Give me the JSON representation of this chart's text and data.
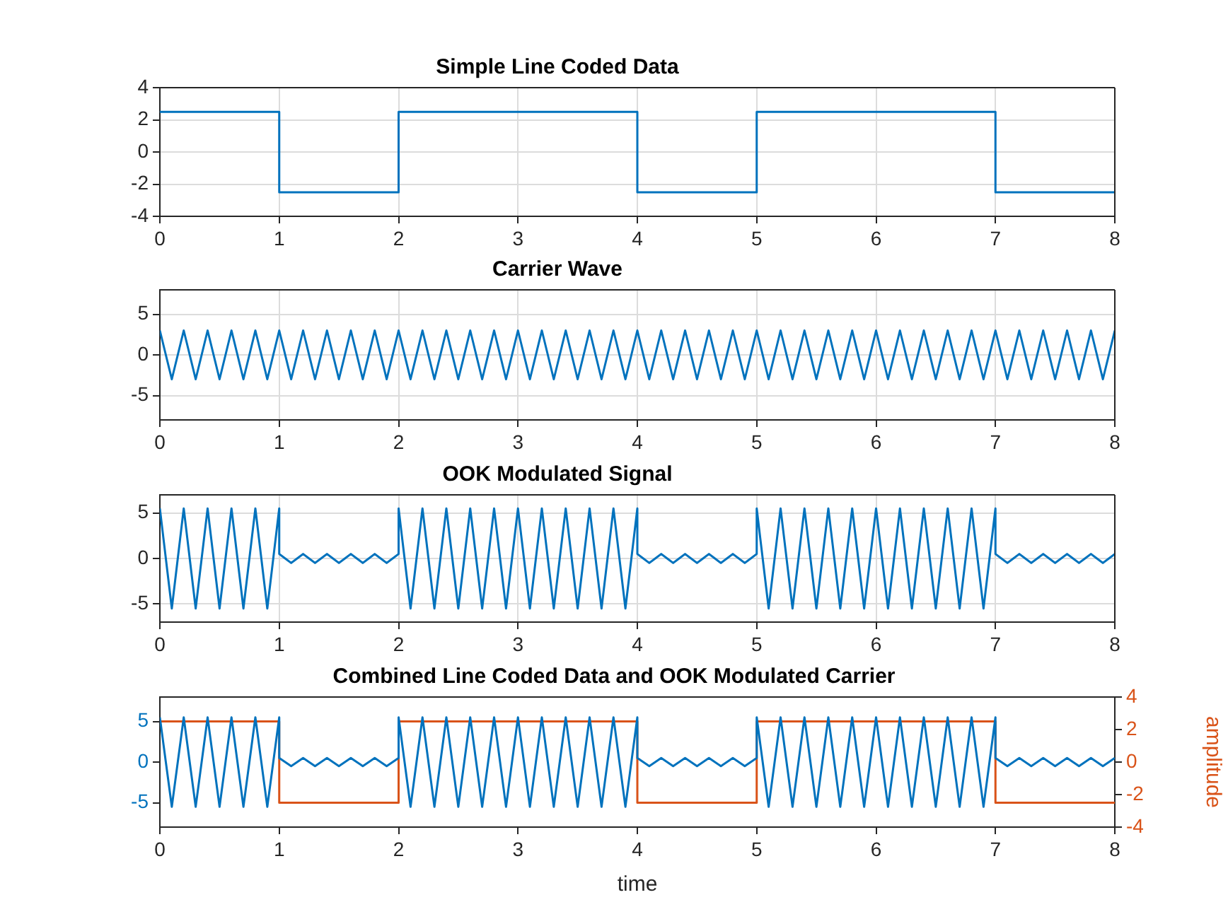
{
  "chart_data": [
    {
      "type": "step",
      "title": "Simple Line Coded Data",
      "x": [
        0,
        1,
        2,
        4,
        5,
        7,
        8
      ],
      "values": [
        2.5,
        -2.5,
        2.5,
        -2.5,
        2.5,
        -2.5,
        -2.5
      ],
      "color": "#0072bd",
      "xlim": [
        0,
        8
      ],
      "xticks": [
        0,
        1,
        2,
        3,
        4,
        5,
        6,
        7,
        8
      ],
      "ylim": [
        -4,
        4
      ],
      "yticks": [
        -4,
        -2,
        0,
        2,
        4
      ],
      "grid": true
    },
    {
      "type": "line",
      "title": "Carrier Wave",
      "x": [
        0,
        0.05,
        0.1,
        0.15,
        0.2,
        0.25,
        0.3,
        0.35,
        0.4,
        0.45,
        0.5,
        0.55,
        0.6,
        0.65,
        0.7,
        0.75,
        0.8,
        0.85,
        0.9,
        0.95,
        1,
        1.05,
        1.1,
        1.15,
        1.2,
        1.25,
        1.3,
        1.35,
        1.4,
        1.45,
        1.5,
        1.55,
        1.6,
        1.65,
        1.7,
        1.75,
        1.8,
        1.85,
        1.9,
        1.95,
        2,
        2.05,
        2.1,
        2.15,
        2.2,
        2.25,
        2.3,
        2.35,
        2.4,
        2.45,
        2.5,
        2.55,
        2.6,
        2.65,
        2.7,
        2.75,
        2.8,
        2.85,
        2.9,
        2.95,
        3,
        3.05,
        3.1,
        3.15,
        3.2,
        3.25,
        3.3,
        3.35,
        3.4,
        3.45,
        3.5,
        3.55,
        3.6,
        3.65,
        3.7,
        3.75,
        3.8,
        3.85,
        3.9,
        3.95,
        4,
        4.05,
        4.1,
        4.15,
        4.2,
        4.25,
        4.3,
        4.35,
        4.4,
        4.45,
        4.5,
        4.55,
        4.6,
        4.65,
        4.7,
        4.75,
        4.8,
        4.85,
        4.9,
        4.95,
        5,
        5.05,
        5.1,
        5.15,
        5.2,
        5.25,
        5.3,
        5.35,
        5.4,
        5.45,
        5.5,
        5.55,
        5.6,
        5.65,
        5.7,
        5.75,
        5.8,
        5.85,
        5.9,
        5.95,
        6,
        6.05,
        6.1,
        6.15,
        6.2,
        6.25,
        6.3,
        6.35,
        6.4,
        6.45,
        6.5,
        6.55,
        6.6,
        6.65,
        6.7,
        6.75,
        6.8,
        6.85,
        6.9,
        6.95,
        7,
        7.05,
        7.1,
        7.15,
        7.2,
        7.25,
        7.3,
        7.35,
        7.4,
        7.45,
        7.5,
        7.55,
        7.6,
        7.65,
        7.7,
        7.75,
        7.8,
        7.85,
        7.9,
        7.95,
        8
      ],
      "values": [
        3,
        0,
        -3,
        0,
        3,
        0,
        -3,
        0,
        3,
        0,
        -3,
        0,
        3,
        0,
        -3,
        0,
        3,
        0,
        -3,
        0,
        3,
        0,
        -3,
        0,
        3,
        0,
        -3,
        0,
        3,
        0,
        -3,
        0,
        3,
        0,
        -3,
        0,
        3,
        0,
        -3,
        0,
        3,
        0,
        -3,
        0,
        3,
        0,
        -3,
        0,
        3,
        0,
        -3,
        0,
        3,
        0,
        -3,
        0,
        3,
        0,
        -3,
        0,
        3,
        0,
        -3,
        0,
        3,
        0,
        -3,
        0,
        3,
        0,
        -3,
        0,
        3,
        0,
        -3,
        0,
        3,
        0,
        -3,
        0,
        3,
        0,
        -3,
        0,
        3,
        0,
        -3,
        0,
        3,
        0,
        -3,
        0,
        3,
        0,
        -3,
        0,
        3,
        0,
        -3,
        0,
        3,
        0,
        -3,
        0,
        3,
        0,
        -3,
        0,
        3,
        0,
        -3,
        0,
        3,
        0,
        -3,
        0,
        3,
        0,
        -3,
        0,
        3,
        0,
        -3,
        0,
        3,
        0,
        -3,
        0,
        3,
        0,
        -3,
        0,
        3,
        0,
        -3,
        0,
        3,
        0,
        -3,
        0,
        3,
        0,
        -3,
        0,
        3,
        0,
        -3,
        0,
        3,
        0,
        -3,
        0,
        3,
        0,
        -3,
        0,
        3,
        0,
        -3,
        0,
        3
      ],
      "color": "#0072bd",
      "xlim": [
        0,
        8
      ],
      "xticks": [
        0,
        1,
        2,
        3,
        4,
        5,
        6,
        7,
        8
      ],
      "ylim": [
        -8,
        8
      ],
      "yticks": [
        -5,
        0,
        5
      ],
      "grid": true
    },
    {
      "type": "line",
      "title": "OOK Modulated Signal",
      "x": [
        0,
        0.05,
        0.1,
        0.15,
        0.2,
        0.25,
        0.3,
        0.35,
        0.4,
        0.45,
        0.5,
        0.55,
        0.6,
        0.65,
        0.7,
        0.75,
        0.8,
        0.85,
        0.9,
        0.95,
        1,
        1,
        1.05,
        1.1,
        1.15,
        1.2,
        1.25,
        1.3,
        1.35,
        1.4,
        1.45,
        1.5,
        1.55,
        1.6,
        1.65,
        1.7,
        1.75,
        1.8,
        1.85,
        1.9,
        1.95,
        2,
        2,
        2.05,
        2.1,
        2.15,
        2.2,
        2.25,
        2.3,
        2.35,
        2.4,
        2.45,
        2.5,
        2.55,
        2.6,
        2.65,
        2.7,
        2.75,
        2.8,
        2.85,
        2.9,
        2.95,
        3,
        3.05,
        3.1,
        3.15,
        3.2,
        3.25,
        3.3,
        3.35,
        3.4,
        3.45,
        3.5,
        3.55,
        3.6,
        3.65,
        3.7,
        3.75,
        3.8,
        3.85,
        3.9,
        3.95,
        4,
        4,
        4.05,
        4.1,
        4.15,
        4.2,
        4.25,
        4.3,
        4.35,
        4.4,
        4.45,
        4.5,
        4.55,
        4.6,
        4.65,
        4.7,
        4.75,
        4.8,
        4.85,
        4.9,
        4.95,
        5,
        5,
        5.05,
        5.1,
        5.15,
        5.2,
        5.25,
        5.3,
        5.35,
        5.4,
        5.45,
        5.5,
        5.55,
        5.6,
        5.65,
        5.7,
        5.75,
        5.8,
        5.85,
        5.9,
        5.95,
        6,
        6.05,
        6.1,
        6.15,
        6.2,
        6.25,
        6.3,
        6.35,
        6.4,
        6.45,
        6.5,
        6.55,
        6.6,
        6.65,
        6.7,
        6.75,
        6.8,
        6.85,
        6.9,
        6.95,
        7,
        7,
        7.05,
        7.1,
        7.15,
        7.2,
        7.25,
        7.3,
        7.35,
        7.4,
        7.45,
        7.5,
        7.55,
        7.6,
        7.65,
        7.7,
        7.75,
        7.8,
        7.85,
        7.9,
        7.95,
        8
      ],
      "values": [
        5.5,
        0,
        -5.5,
        0,
        5.5,
        0,
        -5.5,
        0,
        5.5,
        0,
        -5.5,
        0,
        5.5,
        0,
        -5.5,
        0,
        5.5,
        0,
        -5.5,
        0,
        5.5,
        0.5,
        0,
        -0.5,
        0,
        0.5,
        0,
        -0.5,
        0,
        0.5,
        0,
        -0.5,
        0,
        0.5,
        0,
        -0.5,
        0,
        0.5,
        0,
        -0.5,
        0,
        0.5,
        5.5,
        0,
        -5.5,
        0,
        5.5,
        0,
        -5.5,
        0,
        5.5,
        0,
        -5.5,
        0,
        5.5,
        0,
        -5.5,
        0,
        5.5,
        0,
        -5.5,
        0,
        5.5,
        0,
        -5.5,
        0,
        5.5,
        0,
        -5.5,
        0,
        5.5,
        0,
        -5.5,
        0,
        5.5,
        0,
        -5.5,
        0,
        5.5,
        0,
        -5.5,
        0,
        5.5,
        0.5,
        0,
        -0.5,
        0,
        0.5,
        0,
        -0.5,
        0,
        0.5,
        0,
        -0.5,
        0,
        0.5,
        0,
        -0.5,
        0,
        0.5,
        0,
        -0.5,
        0,
        0.5,
        5.5,
        0,
        -5.5,
        0,
        5.5,
        0,
        -5.5,
        0,
        5.5,
        0,
        -5.5,
        0,
        5.5,
        0,
        -5.5,
        0,
        5.5,
        0,
        -5.5,
        0,
        5.5,
        0,
        -5.5,
        0,
        5.5,
        0,
        -5.5,
        0,
        5.5,
        0,
        -5.5,
        0,
        5.5,
        0,
        -5.5,
        0,
        5.5,
        0,
        -5.5,
        0,
        5.5,
        0.5,
        0,
        -0.5,
        0,
        0.5,
        0,
        -0.5,
        0,
        0.5,
        0,
        -0.5,
        0,
        0.5,
        0,
        -0.5,
        0,
        0.5,
        0,
        -0.5,
        0,
        0.5
      ],
      "color": "#0072bd",
      "xlim": [
        0,
        8
      ],
      "xticks": [
        0,
        1,
        2,
        3,
        4,
        5,
        6,
        7,
        8
      ],
      "ylim": [
        -7,
        7
      ],
      "yticks": [
        -5,
        0,
        5
      ],
      "grid": true
    },
    {
      "type": "line",
      "title": "Combined Line Coded Data and OOK Modulated Carrier",
      "xlabel": "time",
      "y2label": "amplitude",
      "series": [
        {
          "color": "#0072bd",
          "x": [
            0,
            0.05,
            0.1,
            0.15,
            0.2,
            0.25,
            0.3,
            0.35,
            0.4,
            0.45,
            0.5,
            0.55,
            0.6,
            0.65,
            0.7,
            0.75,
            0.8,
            0.85,
            0.9,
            0.95,
            1,
            1,
            1.05,
            1.1,
            1.15,
            1.2,
            1.25,
            1.3,
            1.35,
            1.4,
            1.45,
            1.5,
            1.55,
            1.6,
            1.65,
            1.7,
            1.75,
            1.8,
            1.85,
            1.9,
            1.95,
            2,
            2,
            2.05,
            2.1,
            2.15,
            2.2,
            2.25,
            2.3,
            2.35,
            2.4,
            2.45,
            2.5,
            2.55,
            2.6,
            2.65,
            2.7,
            2.75,
            2.8,
            2.85,
            2.9,
            2.95,
            3,
            3.05,
            3.1,
            3.15,
            3.2,
            3.25,
            3.3,
            3.35,
            3.4,
            3.45,
            3.5,
            3.55,
            3.6,
            3.65,
            3.7,
            3.75,
            3.8,
            3.85,
            3.9,
            3.95,
            4,
            4,
            4.05,
            4.1,
            4.15,
            4.2,
            4.25,
            4.3,
            4.35,
            4.4,
            4.45,
            4.5,
            4.55,
            4.6,
            4.65,
            4.7,
            4.75,
            4.8,
            4.85,
            4.9,
            4.95,
            5,
            5,
            5.05,
            5.1,
            5.15,
            5.2,
            5.25,
            5.3,
            5.35,
            5.4,
            5.45,
            5.5,
            5.55,
            5.6,
            5.65,
            5.7,
            5.75,
            5.8,
            5.85,
            5.9,
            5.95,
            6,
            6.05,
            6.1,
            6.15,
            6.2,
            6.25,
            6.3,
            6.35,
            6.4,
            6.45,
            6.5,
            6.55,
            6.6,
            6.65,
            6.7,
            6.75,
            6.8,
            6.85,
            6.9,
            6.95,
            7,
            7,
            7.05,
            7.1,
            7.15,
            7.2,
            7.25,
            7.3,
            7.35,
            7.4,
            7.45,
            7.5,
            7.55,
            7.6,
            7.65,
            7.7,
            7.75,
            7.8,
            7.85,
            7.9,
            7.95,
            8
          ],
          "values": [
            5.5,
            0,
            -5.5,
            0,
            5.5,
            0,
            -5.5,
            0,
            5.5,
            0,
            -5.5,
            0,
            5.5,
            0,
            -5.5,
            0,
            5.5,
            0,
            -5.5,
            0,
            5.5,
            0.5,
            0,
            -0.5,
            0,
            0.5,
            0,
            -0.5,
            0,
            0.5,
            0,
            -0.5,
            0,
            0.5,
            0,
            -0.5,
            0,
            0.5,
            0,
            -0.5,
            0,
            0.5,
            5.5,
            0,
            -5.5,
            0,
            5.5,
            0,
            -5.5,
            0,
            5.5,
            0,
            -5.5,
            0,
            5.5,
            0,
            -5.5,
            0,
            5.5,
            0,
            -5.5,
            0,
            5.5,
            0,
            -5.5,
            0,
            5.5,
            0,
            -5.5,
            0,
            5.5,
            0,
            -5.5,
            0,
            5.5,
            0,
            -5.5,
            0,
            5.5,
            0,
            -5.5,
            0,
            5.5,
            0.5,
            0,
            -0.5,
            0,
            0.5,
            0,
            -0.5,
            0,
            0.5,
            0,
            -0.5,
            0,
            0.5,
            0,
            -0.5,
            0,
            0.5,
            0,
            -0.5,
            0,
            0.5,
            5.5,
            0,
            -5.5,
            0,
            5.5,
            0,
            -5.5,
            0,
            5.5,
            0,
            -5.5,
            0,
            5.5,
            0,
            -5.5,
            0,
            5.5,
            0,
            -5.5,
            0,
            5.5,
            0,
            -5.5,
            0,
            5.5,
            0,
            -5.5,
            0,
            5.5,
            0,
            -5.5,
            0,
            5.5,
            0,
            -5.5,
            0,
            5.5,
            0,
            -5.5,
            0,
            5.5,
            0.5,
            0,
            -0.5,
            0,
            0.5,
            0,
            -0.5,
            0,
            0.5,
            0,
            -0.5,
            0,
            0.5,
            0,
            -0.5,
            0,
            0.5,
            0,
            -0.5,
            0,
            0.5
          ]
        },
        {
          "type": "step",
          "axis": "y2",
          "color": "#d95319",
          "x": [
            0,
            1,
            2,
            4,
            5,
            7,
            8
          ],
          "values": [
            2.5,
            -2.5,
            2.5,
            -2.5,
            2.5,
            -2.5,
            -2.5
          ]
        }
      ],
      "xlim": [
        0,
        8
      ],
      "xticks": [
        0,
        1,
        2,
        3,
        4,
        5,
        6,
        7,
        8
      ],
      "ylim": [
        -8,
        8
      ],
      "yticks": [
        -5,
        0,
        5
      ],
      "y2lim": [
        -4,
        4
      ],
      "y2ticks": [
        -4,
        -2,
        0,
        2,
        4
      ]
    }
  ]
}
